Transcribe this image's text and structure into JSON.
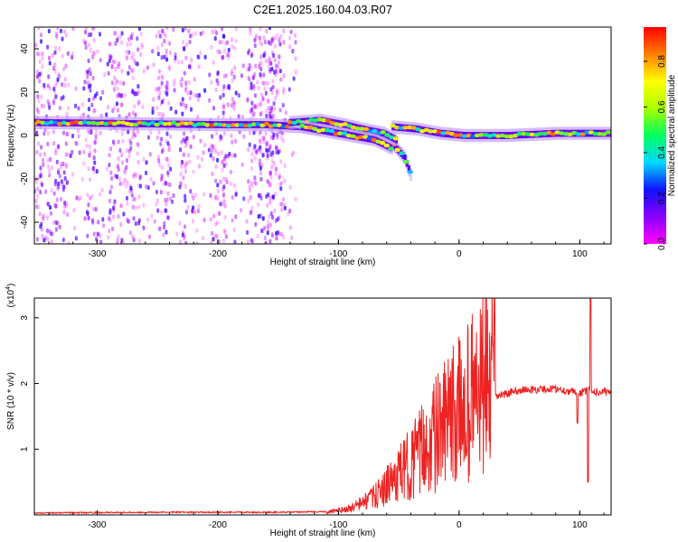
{
  "title": "C2E1.2025.160.04.03.R07",
  "colors": {
    "snr_line": "#ee2222",
    "colorbar": [
      "#ff00ff",
      "#8a00ff",
      "#1010ff",
      "#00d8ff",
      "#00ff60",
      "#aaff00",
      "#ffff00",
      "#ff8000",
      "#ff0000"
    ]
  },
  "chart_data": [
    {
      "type": "heatmap",
      "xlabel": "Height of straight line (km)",
      "ylabel": "Frequency (Hz)",
      "xlim": [
        -352,
        126
      ],
      "ylim": [
        -50,
        50
      ],
      "xticks": [
        -300,
        -200,
        -100,
        0,
        100
      ],
      "yticks": [
        -40,
        -20,
        0,
        20,
        40
      ],
      "grid": false,
      "colorbar": {
        "label": "Normalized spectral amplitude",
        "range": [
          0.0,
          0.95
        ],
        "ticks": [
          0.0,
          0.2,
          0.4,
          0.6,
          0.8
        ]
      },
      "ridge_segments": [
        {
          "x": [
            -352,
            -200,
            -160,
            -130,
            -110,
            -90,
            -75,
            -55,
            -45,
            -40
          ],
          "y": [
            6,
            5,
            5,
            4,
            3,
            1,
            0,
            -4,
            -10,
            -18
          ]
        },
        {
          "x": [
            -140,
            -115,
            -95,
            -80,
            -62,
            -52
          ],
          "y": [
            6,
            7,
            5,
            3,
            1,
            -2
          ]
        },
        {
          "x": [
            -130,
            -110,
            -90,
            -70,
            -55
          ],
          "y": [
            4,
            2,
            0,
            -2,
            -6
          ]
        },
        {
          "x": [
            -55,
            -35,
            -15,
            5,
            40,
            80,
            126
          ],
          "y": [
            4,
            3,
            1,
            0,
            0,
            1,
            1
          ]
        }
      ]
    },
    {
      "type": "line",
      "xlabel": "Height of straight line (km)",
      "ylabel": "SNR (10 * v/v)",
      "y_multiplier": "(x10",
      "y_multiplier_exp": "4",
      "xlim": [
        -352,
        126
      ],
      "ylim": [
        0,
        3.3
      ],
      "xticks": [
        -300,
        -200,
        -100,
        0,
        100
      ],
      "yticks": [
        1,
        2,
        3
      ],
      "grid": false,
      "envelope": {
        "x": [
          -352,
          -250,
          -150,
          -110,
          -90,
          -70,
          -50,
          -30,
          -10,
          10,
          30,
          50,
          80,
          100,
          108,
          112,
          126
        ],
        "y": [
          0.03,
          0.04,
          0.04,
          0.05,
          0.12,
          0.3,
          0.6,
          0.9,
          1.2,
          1.55,
          1.8,
          1.9,
          1.92,
          1.85,
          1.9,
          1.88,
          1.88
        ]
      },
      "spikes": [
        {
          "x": 98,
          "y": 1.4
        },
        {
          "x": 107,
          "y": 0.5
        },
        {
          "x": 109,
          "y": 3.3
        }
      ]
    }
  ]
}
